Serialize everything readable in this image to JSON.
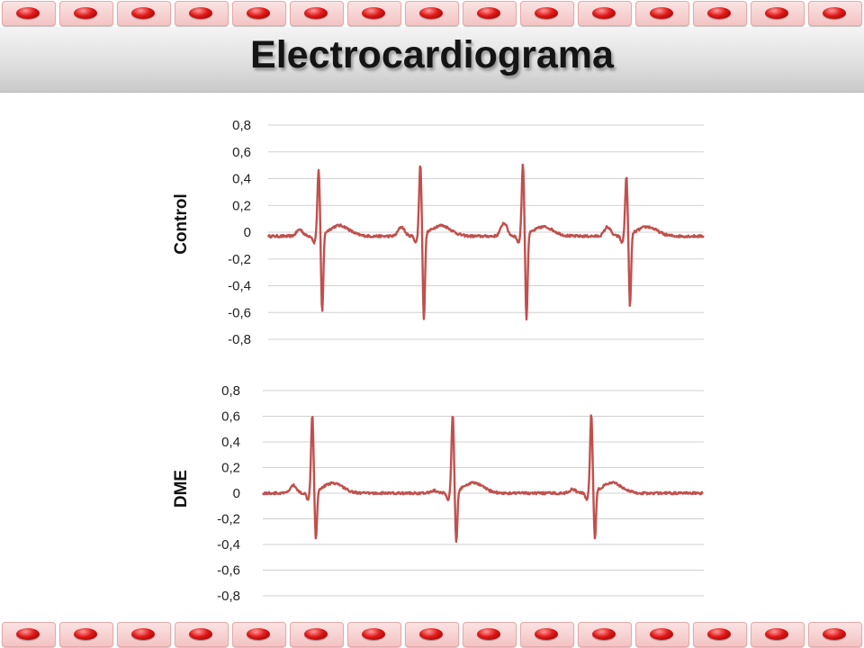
{
  "title": "Electrocardiograma",
  "colors": {
    "trace": "#c0504d",
    "grid": "#d0d0d0",
    "bead": "#d91a1a"
  },
  "chart_data": [
    {
      "type": "line",
      "panel_label": "Control",
      "ylim": [
        -0.8,
        0.8
      ],
      "yticks": [
        "0,8",
        "0,6",
        "0,4",
        "0,2",
        "0",
        "-0,2",
        "-0,4",
        "-0,6",
        "-0,8"
      ],
      "grid": true,
      "legend": "none",
      "series": [
        {
          "baseline": -0.03,
          "beats": [
            {
              "r_peak": 0.41,
              "s_trough": -0.62,
              "p_wave": 0.05,
              "t_wave": 0.08
            },
            {
              "r_peak": 0.45,
              "s_trough": -0.67,
              "p_wave": 0.07,
              "t_wave": 0.08
            },
            {
              "r_peak": 0.45,
              "s_trough": -0.67,
              "p_wave": 0.1,
              "t_wave": 0.07
            },
            {
              "r_peak": 0.36,
              "s_trough": -0.57,
              "p_wave": 0.07,
              "t_wave": 0.07
            }
          ]
        }
      ]
    },
    {
      "type": "line",
      "panel_label": "DME",
      "ylim": [
        -0.8,
        0.8
      ],
      "yticks": [
        "0,8",
        "0,6",
        "0,4",
        "0,2",
        "0",
        "-0,2",
        "-0,4",
        "-0,6",
        "-0,8"
      ],
      "grid": true,
      "legend": "none",
      "series": [
        {
          "baseline": 0.0,
          "beats": [
            {
              "r_peak": 0.56,
              "s_trough": -0.38,
              "p_wave": 0.06,
              "t_wave": 0.08
            },
            {
              "r_peak": 0.56,
              "s_trough": -0.41,
              "p_wave": 0.02,
              "t_wave": 0.08
            },
            {
              "r_peak": 0.56,
              "s_trough": -0.38,
              "p_wave": 0.03,
              "t_wave": 0.08
            }
          ]
        }
      ]
    }
  ]
}
